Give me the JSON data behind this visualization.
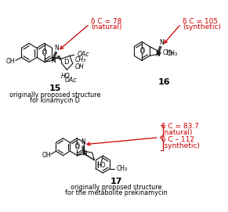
{
  "bg_color": "#ffffff",
  "fig_width": 2.91,
  "fig_height": 2.71,
  "dpi": 100,
  "sc": "#1a1a1a",
  "rc": "#cc0000",
  "label_15": "15",
  "label_16": "16",
  "label_17": "17",
  "cap15_1": "originally proposed structure",
  "cap15_2": "for kinamycin D",
  "cap17_1": "originally proposed structure",
  "cap17_2": "for the metabolite prekinamycin",
  "ann15_1": "δ C = 78",
  "ann15_2": "(natural)",
  "ann16_1": "δ C = 105",
  "ann16_2": "(synthetic)",
  "ann17_1": "δ C = 83.7",
  "ann17_2": "(natural)",
  "ann17_3": "δ C – 112",
  "ann17_4": "(synthetic)"
}
